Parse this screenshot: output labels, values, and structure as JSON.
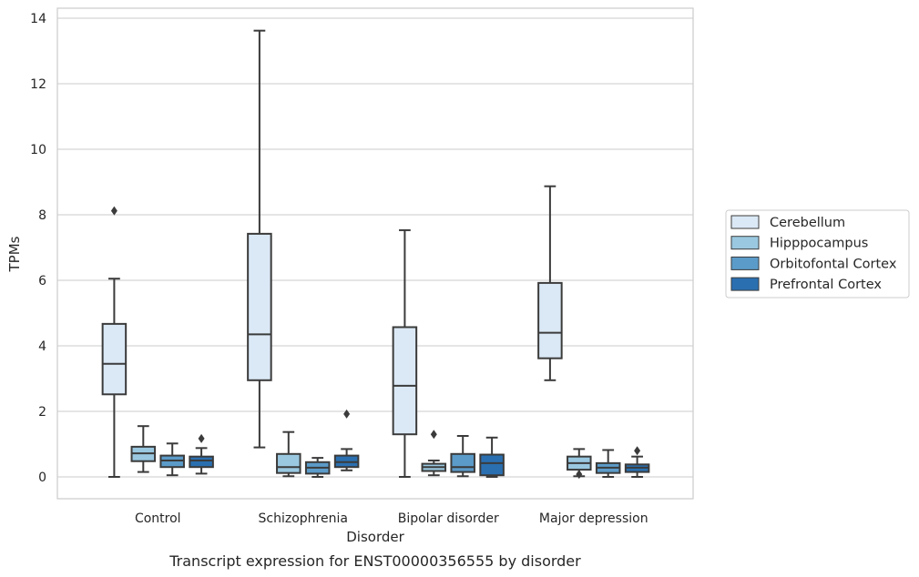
{
  "chart_data": {
    "type": "box",
    "xlabel": "Disorder",
    "ylabel": "TPMs",
    "caption": "Transcript expression for ENST00000356555 by disorder",
    "ylim": [
      -0.65,
      14.3
    ],
    "yticks": [
      0,
      2,
      4,
      6,
      8,
      10,
      12,
      14
    ],
    "grid": true,
    "legend_position": "right",
    "categories": [
      "Control",
      "Schizophrenia",
      "Bipolar disorder",
      "Major depression"
    ],
    "series": [
      {
        "name": "Cerebellum",
        "color": "#dbe9f6",
        "boxes": [
          {
            "whislo": 0.0,
            "q1": 2.52,
            "med": 3.45,
            "q3": 4.67,
            "whishi": 6.05,
            "fliers": [
              8.12
            ]
          },
          {
            "whislo": 0.9,
            "q1": 2.95,
            "med": 4.35,
            "q3": 7.42,
            "whishi": 13.62,
            "fliers": []
          },
          {
            "whislo": 0.0,
            "q1": 1.3,
            "med": 2.78,
            "q3": 4.57,
            "whishi": 7.53,
            "fliers": []
          },
          {
            "whislo": 2.95,
            "q1": 3.62,
            "med": 4.4,
            "q3": 5.92,
            "whishi": 8.87,
            "fliers": []
          }
        ]
      },
      {
        "name": "Hipppocampus",
        "color": "#9ac8e0",
        "boxes": [
          {
            "whislo": 0.15,
            "q1": 0.48,
            "med": 0.72,
            "q3": 0.92,
            "whishi": 1.55,
            "fliers": []
          },
          {
            "whislo": 0.02,
            "q1": 0.12,
            "med": 0.3,
            "q3": 0.7,
            "whishi": 1.37,
            "fliers": []
          },
          {
            "whislo": 0.05,
            "q1": 0.18,
            "med": 0.3,
            "q3": 0.4,
            "whishi": 0.5,
            "fliers": [
              1.3
            ]
          },
          {
            "whislo": 0.02,
            "q1": 0.22,
            "med": 0.42,
            "q3": 0.62,
            "whishi": 0.85,
            "fliers": [
              0.08
            ]
          }
        ]
      },
      {
        "name": "Orbitofontal Cortex",
        "color": "#5b9bc9",
        "boxes": [
          {
            "whislo": 0.05,
            "q1": 0.3,
            "med": 0.5,
            "q3": 0.65,
            "whishi": 1.02,
            "fliers": []
          },
          {
            "whislo": 0.0,
            "q1": 0.1,
            "med": 0.28,
            "q3": 0.45,
            "whishi": 0.58,
            "fliers": []
          },
          {
            "whislo": 0.02,
            "q1": 0.15,
            "med": 0.3,
            "q3": 0.7,
            "whishi": 1.25,
            "fliers": []
          },
          {
            "whislo": 0.0,
            "q1": 0.12,
            "med": 0.28,
            "q3": 0.42,
            "whishi": 0.82,
            "fliers": []
          }
        ]
      },
      {
        "name": "Prefrontal Cortex",
        "color": "#2a6fb0",
        "boxes": [
          {
            "whislo": 0.1,
            "q1": 0.3,
            "med": 0.5,
            "q3": 0.62,
            "whishi": 0.88,
            "fliers": [
              1.17
            ]
          },
          {
            "whislo": 0.2,
            "q1": 0.3,
            "med": 0.45,
            "q3": 0.65,
            "whishi": 0.85,
            "fliers": [
              1.92
            ]
          },
          {
            "whislo": 0.0,
            "q1": 0.05,
            "med": 0.42,
            "q3": 0.68,
            "whishi": 1.2,
            "fliers": []
          },
          {
            "whislo": 0.0,
            "q1": 0.15,
            "med": 0.28,
            "q3": 0.38,
            "whishi": 0.62,
            "fliers": [
              0.8
            ]
          }
        ]
      }
    ]
  }
}
